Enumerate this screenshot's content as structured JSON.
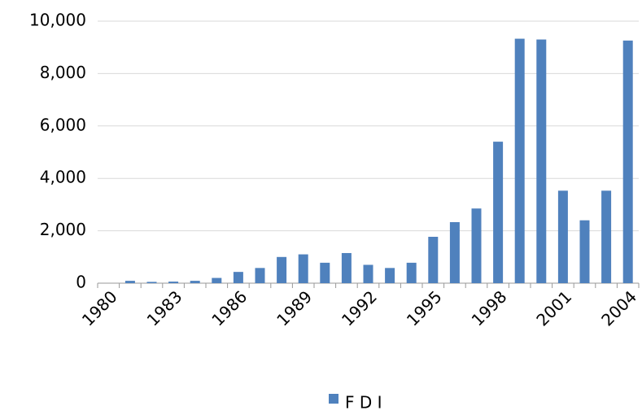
{
  "chart_data": {
    "type": "bar",
    "categories": [
      "1980",
      null,
      null,
      "1983",
      null,
      null,
      "1986",
      null,
      null,
      "1989",
      null,
      null,
      "1992",
      null,
      null,
      "1995",
      null,
      null,
      "1998",
      null,
      null,
      "2001",
      null,
      null,
      "2004"
    ],
    "series": [
      {
        "name": "F D I",
        "color": "#4f81bd",
        "values": [
          0,
          90,
          50,
          60,
          90,
          200,
          430,
          580,
          1000,
          1100,
          780,
          1150,
          700,
          580,
          780,
          1770,
          2330,
          2850,
          5400,
          9330,
          9300,
          3530,
          2400,
          3530,
          9260
        ]
      }
    ],
    "ylim": [
      0,
      10000
    ],
    "yticks": [
      0,
      {
        "value": 2000,
        "label": "2,000"
      },
      {
        "value": 4000,
        "label": "4,000"
      },
      {
        "value": 6000,
        "label": "6,000"
      },
      {
        "value": 8000,
        "label": "8,000"
      },
      {
        "value": 10000,
        "label": "10,000"
      }
    ],
    "grid": true,
    "legend": "bottom"
  }
}
